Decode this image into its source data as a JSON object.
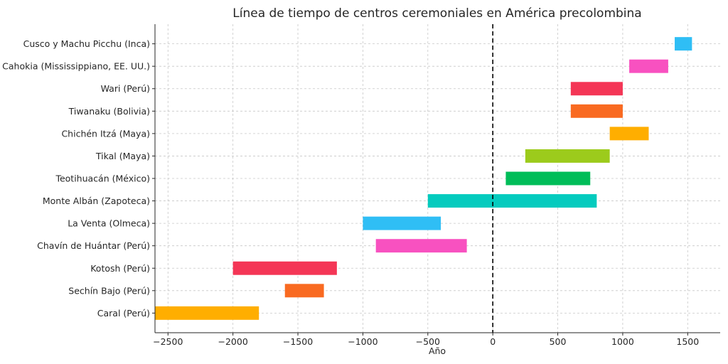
{
  "chart_data": {
    "type": "bar",
    "orientation": "horizontal-range",
    "title": "Línea de tiempo de centros ceremoniales en América precolombina",
    "xlabel": "Año",
    "ylabel": "",
    "xlim": [
      -2600,
      1750
    ],
    "xticks": [
      -2500,
      -2000,
      -1500,
      -1000,
      -500,
      0,
      500,
      1000,
      1500
    ],
    "xtick_labels": [
      "−2500",
      "−2000",
      "−1500",
      "−1000",
      "−500",
      "0",
      "500",
      "1000",
      "1500"
    ],
    "grid": true,
    "reference_line": {
      "x": 0,
      "style": "dashed"
    },
    "categories": [
      "Caral (Perú)",
      "Sechín Bajo (Perú)",
      "Kotosh (Perú)",
      "Chavín de Huántar (Perú)",
      "La Venta (Olmeca)",
      "Monte Albán (Zapoteca)",
      "Teotihuacán (México)",
      "Tikal (Maya)",
      "Chichén Itzá (Maya)",
      "Tiwanaku (Bolivia)",
      "Wari (Perú)",
      "Cahokia (Mississippiano, EE. UU.)",
      "Cusco y Machu Picchu (Inca)"
    ],
    "ranges": [
      {
        "start": -2600,
        "end": -1800,
        "color": "#ffae00"
      },
      {
        "start": -1600,
        "end": -1300,
        "color": "#f96a21"
      },
      {
        "start": -2000,
        "end": -1200,
        "color": "#f43656"
      },
      {
        "start": -900,
        "end": -200,
        "color": "#f851c0"
      },
      {
        "start": -1000,
        "end": -400,
        "color": "#2fbef5"
      },
      {
        "start": -500,
        "end": 800,
        "color": "#04cbbe"
      },
      {
        "start": 100,
        "end": 750,
        "color": "#00bd58"
      },
      {
        "start": 250,
        "end": 900,
        "color": "#9ccb1c"
      },
      {
        "start": 900,
        "end": 1200,
        "color": "#ffae00"
      },
      {
        "start": 600,
        "end": 1000,
        "color": "#f96a21"
      },
      {
        "start": 600,
        "end": 1000,
        "color": "#f43656"
      },
      {
        "start": 1050,
        "end": 1350,
        "color": "#f851c0"
      },
      {
        "start": 1400,
        "end": 1533,
        "color": "#2fbef5"
      }
    ]
  }
}
